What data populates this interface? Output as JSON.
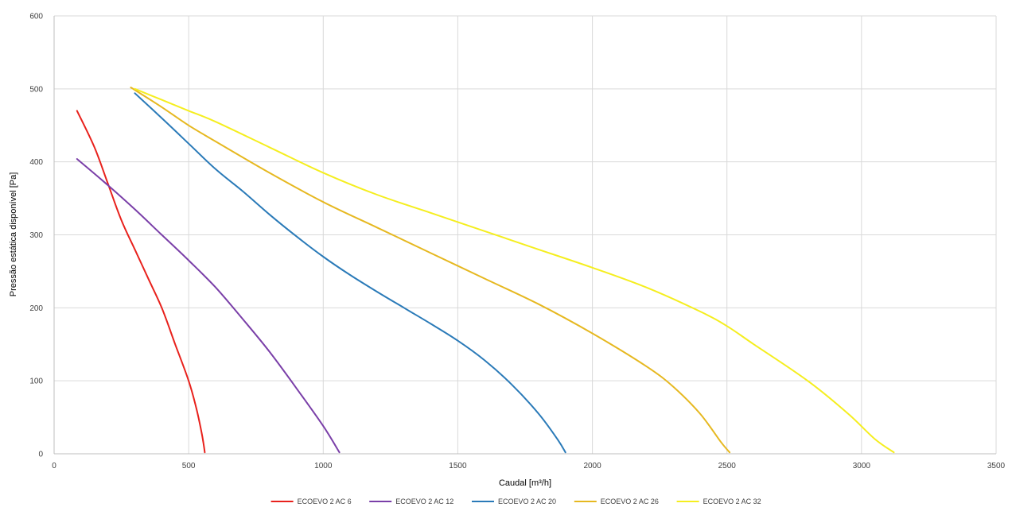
{
  "chart_data": {
    "type": "line",
    "title": "",
    "xlabel": "Caudal [m³/h]",
    "ylabel": "Pressão estática disponível [Pa]",
    "xlim": [
      0,
      3500
    ],
    "ylim": [
      0,
      600
    ],
    "x_ticks": [
      0,
      500,
      1000,
      1500,
      2000,
      2500,
      3000,
      3500
    ],
    "y_ticks": [
      0,
      100,
      200,
      300,
      400,
      500,
      600
    ],
    "grid": true,
    "legend_position": "bottom",
    "series": [
      {
        "name": "ECOEVO 2 AC 6",
        "color": "#e8211c",
        "points": [
          [
            85,
            470
          ],
          [
            150,
            420
          ],
          [
            200,
            370
          ],
          [
            250,
            320
          ],
          [
            300,
            280
          ],
          [
            350,
            240
          ],
          [
            400,
            200
          ],
          [
            450,
            150
          ],
          [
            500,
            100
          ],
          [
            530,
            60
          ],
          [
            550,
            25
          ],
          [
            560,
            2
          ]
        ]
      },
      {
        "name": "ECOEVO 2 AC 12",
        "color": "#7a3fa8",
        "points": [
          [
            85,
            404
          ],
          [
            200,
            368
          ],
          [
            300,
            335
          ],
          [
            400,
            300
          ],
          [
            500,
            265
          ],
          [
            600,
            228
          ],
          [
            700,
            185
          ],
          [
            800,
            140
          ],
          [
            900,
            90
          ],
          [
            1000,
            38
          ],
          [
            1060,
            2
          ]
        ]
      },
      {
        "name": "ECOEVO 2 AC 20",
        "color": "#2a7ab8",
        "points": [
          [
            300,
            494
          ],
          [
            400,
            460
          ],
          [
            500,
            425
          ],
          [
            600,
            390
          ],
          [
            700,
            360
          ],
          [
            800,
            328
          ],
          [
            900,
            298
          ],
          [
            1000,
            270
          ],
          [
            1100,
            245
          ],
          [
            1200,
            222
          ],
          [
            1300,
            200
          ],
          [
            1400,
            178
          ],
          [
            1500,
            155
          ],
          [
            1600,
            128
          ],
          [
            1700,
            95
          ],
          [
            1800,
            55
          ],
          [
            1870,
            20
          ],
          [
            1900,
            2
          ]
        ]
      },
      {
        "name": "ECOEVO 2 AC 26",
        "color": "#e6b820",
        "points": [
          [
            285,
            502
          ],
          [
            400,
            475
          ],
          [
            500,
            450
          ],
          [
            600,
            428
          ],
          [
            800,
            385
          ],
          [
            1000,
            345
          ],
          [
            1200,
            310
          ],
          [
            1400,
            275
          ],
          [
            1600,
            240
          ],
          [
            1800,
            205
          ],
          [
            2000,
            165
          ],
          [
            2200,
            120
          ],
          [
            2300,
            92
          ],
          [
            2400,
            55
          ],
          [
            2480,
            15
          ],
          [
            2510,
            2
          ]
        ]
      },
      {
        "name": "ECOEVO 2 AC 32",
        "color": "#f5ee1f",
        "points": [
          [
            300,
            500
          ],
          [
            400,
            485
          ],
          [
            500,
            470
          ],
          [
            600,
            455
          ],
          [
            800,
            420
          ],
          [
            1000,
            385
          ],
          [
            1200,
            355
          ],
          [
            1400,
            330
          ],
          [
            1600,
            305
          ],
          [
            1800,
            280
          ],
          [
            2000,
            255
          ],
          [
            2200,
            228
          ],
          [
            2400,
            195
          ],
          [
            2500,
            175
          ],
          [
            2600,
            150
          ],
          [
            2800,
            100
          ],
          [
            2950,
            55
          ],
          [
            3050,
            20
          ],
          [
            3120,
            2
          ]
        ]
      }
    ]
  }
}
